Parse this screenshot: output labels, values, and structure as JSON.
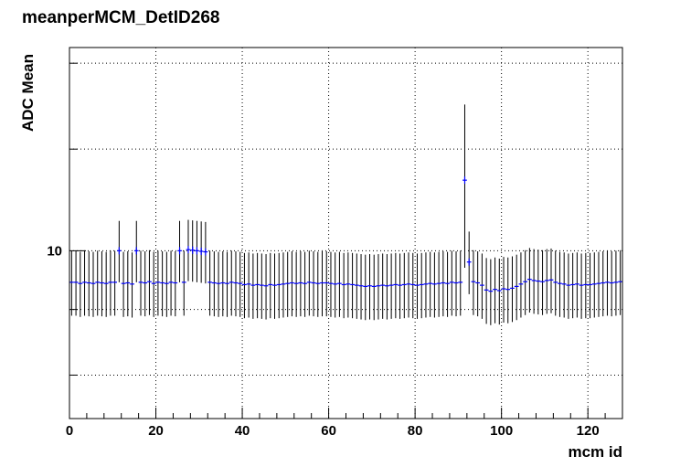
{
  "chart_data": {
    "type": "scatter",
    "title": "meanperMCM_DetID268",
    "xlabel": "mcm id",
    "ylabel": "ADC Mean",
    "xlim": [
      0,
      128
    ],
    "ylim": [
      7.4,
      14.4
    ],
    "y_scale": "log",
    "grid": true,
    "colors": {
      "marker": "#0000ff",
      "error_bar": "#000000",
      "grid": "#000000",
      "frame": "#000000"
    },
    "x_ticks": [
      0,
      20,
      40,
      60,
      80,
      100,
      120
    ],
    "x_tick_labels": [
      "0",
      "20",
      "40",
      "60",
      "80",
      "100",
      "120"
    ],
    "y_ticks": [
      10
    ],
    "y_tick_labels": [
      "10"
    ],
    "y_error": 0.55,
    "series": [
      {
        "x": [
          0.5,
          1.5,
          2.5,
          3.5,
          4.5,
          5.5,
          6.5,
          7.5,
          8.5,
          9.5,
          10.5,
          11.5,
          12.5,
          13.5,
          14.5,
          15.5,
          16.5,
          17.5,
          18.5,
          19.5,
          20.5,
          21.5,
          22.5,
          23.5,
          24.5,
          25.5,
          26.5,
          27.5,
          28.5,
          29.5,
          30.5,
          31.5,
          32.5,
          33.5,
          34.5,
          35.5,
          36.5,
          37.5,
          38.5,
          39.5,
          40.5,
          41.5,
          42.5,
          43.5,
          44.5,
          45.5,
          46.5,
          47.5,
          48.5,
          49.5,
          50.5,
          51.5,
          52.5,
          53.5,
          54.5,
          55.5,
          56.5,
          57.5,
          58.5,
          59.5,
          60.5,
          61.5,
          62.5,
          63.5,
          64.5,
          65.5,
          66.5,
          67.5,
          68.5,
          69.5,
          70.5,
          71.5,
          72.5,
          73.5,
          74.5,
          75.5,
          76.5,
          77.5,
          78.5,
          79.5,
          80.5,
          81.5,
          82.5,
          83.5,
          84.5,
          85.5,
          86.5,
          87.5,
          88.5,
          89.5,
          90.5,
          91.5,
          92.5,
          93.5,
          94.5,
          95.5,
          96.5,
          97.5,
          98.5,
          99.5,
          100.5,
          101.5,
          102.5,
          103.5,
          104.5,
          105.5,
          106.5,
          107.5,
          108.5,
          109.5,
          110.5,
          111.5,
          112.5,
          113.5,
          114.5,
          115.5,
          116.5,
          117.5,
          118.5,
          119.5,
          120.5,
          121.5,
          122.5,
          123.5,
          124.5,
          125.5,
          126.5,
          127.5
        ],
        "y": [
          9.45,
          9.45,
          9.43,
          9.45,
          9.44,
          9.43,
          9.45,
          9.44,
          9.43,
          9.45,
          9.45,
          10.0,
          9.43,
          9.44,
          9.42,
          10.0,
          9.45,
          9.44,
          9.46,
          9.43,
          9.45,
          9.44,
          9.43,
          9.45,
          9.44,
          10.0,
          9.45,
          10.02,
          10.01,
          10.0,
          9.99,
          9.98,
          9.45,
          9.44,
          9.43,
          9.44,
          9.43,
          9.45,
          9.44,
          9.43,
          9.41,
          9.42,
          9.4,
          9.41,
          9.4,
          9.39,
          9.41,
          9.4,
          9.41,
          9.42,
          9.43,
          9.44,
          9.43,
          9.44,
          9.43,
          9.45,
          9.44,
          9.43,
          9.44,
          9.44,
          9.43,
          9.42,
          9.43,
          9.41,
          9.42,
          9.41,
          9.4,
          9.39,
          9.38,
          9.39,
          9.38,
          9.39,
          9.4,
          9.39,
          9.4,
          9.41,
          9.4,
          9.41,
          9.42,
          9.41,
          9.4,
          9.41,
          9.42,
          9.43,
          9.42,
          9.43,
          9.44,
          9.43,
          9.45,
          9.44,
          9.45,
          11.35,
          9.8,
          9.46,
          9.44,
          9.4,
          9.32,
          9.3,
          9.33,
          9.31,
          9.34,
          9.33,
          9.35,
          9.38,
          9.42,
          9.46,
          9.5,
          9.48,
          9.47,
          9.46,
          9.48,
          9.49,
          9.45,
          9.43,
          9.42,
          9.4,
          9.41,
          9.42,
          9.4,
          9.41,
          9.41,
          9.42,
          9.43,
          9.44,
          9.45,
          9.44,
          9.45,
          9.46
        ]
      }
    ]
  }
}
